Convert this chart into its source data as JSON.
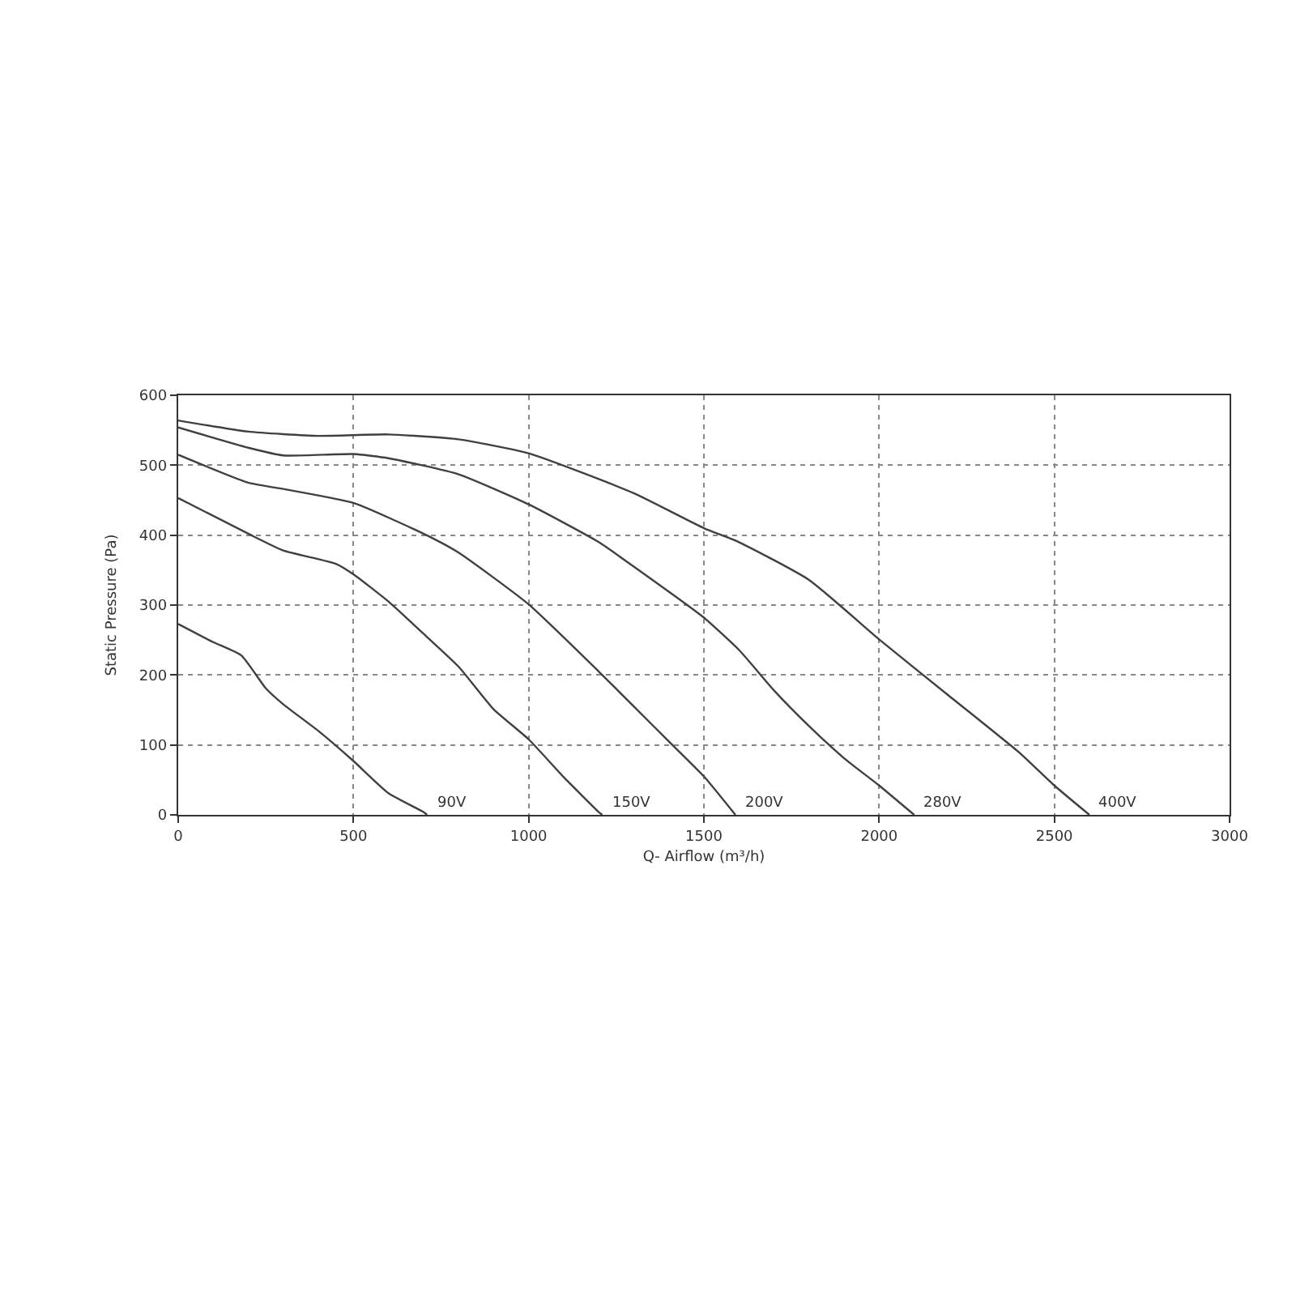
{
  "chart_data": {
    "type": "line",
    "xlabel": "Q- Airflow (m³/h)",
    "ylabel": "Static Pressure (Pa)",
    "xlim": [
      0,
      3000
    ],
    "ylim": [
      0,
      600
    ],
    "xticks": [
      0,
      500,
      1000,
      1500,
      2000,
      2500,
      3000
    ],
    "yticks": [
      0,
      100,
      200,
      300,
      400,
      500,
      600
    ],
    "grid": true,
    "legend": false,
    "marker": "none",
    "line_style": "solid",
    "series": [
      {
        "name": "90V",
        "color": "#404040",
        "x": [
          0,
          100,
          180,
          250,
          300,
          400,
          500,
          600,
          700,
          710
        ],
        "values": [
          273,
          247,
          228,
          181,
          158,
          120,
          77,
          31,
          4,
          0
        ]
      },
      {
        "name": "150V",
        "color": "#404040",
        "x": [
          0,
          200,
          300,
          450,
          500,
          600,
          700,
          800,
          900,
          1000,
          1100,
          1200,
          1210
        ],
        "values": [
          453,
          402,
          378,
          359,
          344,
          305,
          259,
          212,
          151,
          108,
          54,
          4,
          0
        ]
      },
      {
        "name": "200V",
        "color": "#404040",
        "x": [
          0,
          200,
          300,
          500,
          700,
          800,
          1000,
          1200,
          1300,
          1400,
          1500,
          1590
        ],
        "values": [
          515,
          475,
          466,
          446,
          402,
          375,
          301,
          205,
          155,
          105,
          55,
          0
        ]
      },
      {
        "name": "280V",
        "color": "#404040",
        "x": [
          0,
          200,
          300,
          500,
          600,
          800,
          1000,
          1200,
          1300,
          1500,
          1600,
          1700,
          1800,
          1900,
          2000,
          2100
        ],
        "values": [
          554,
          525,
          514,
          516,
          510,
          487,
          444,
          390,
          355,
          282,
          236,
          178,
          127,
          81,
          42,
          0
        ]
      },
      {
        "name": "400V",
        "color": "#404040",
        "x": [
          0,
          200,
          400,
          600,
          800,
          1000,
          1300,
          1500,
          1600,
          1800,
          2000,
          2200,
          2400,
          2500,
          2600
        ],
        "values": [
          564,
          548,
          542,
          544,
          537,
          517,
          460,
          410,
          390,
          336,
          251,
          170,
          89,
          42,
          0
        ]
      }
    ]
  }
}
